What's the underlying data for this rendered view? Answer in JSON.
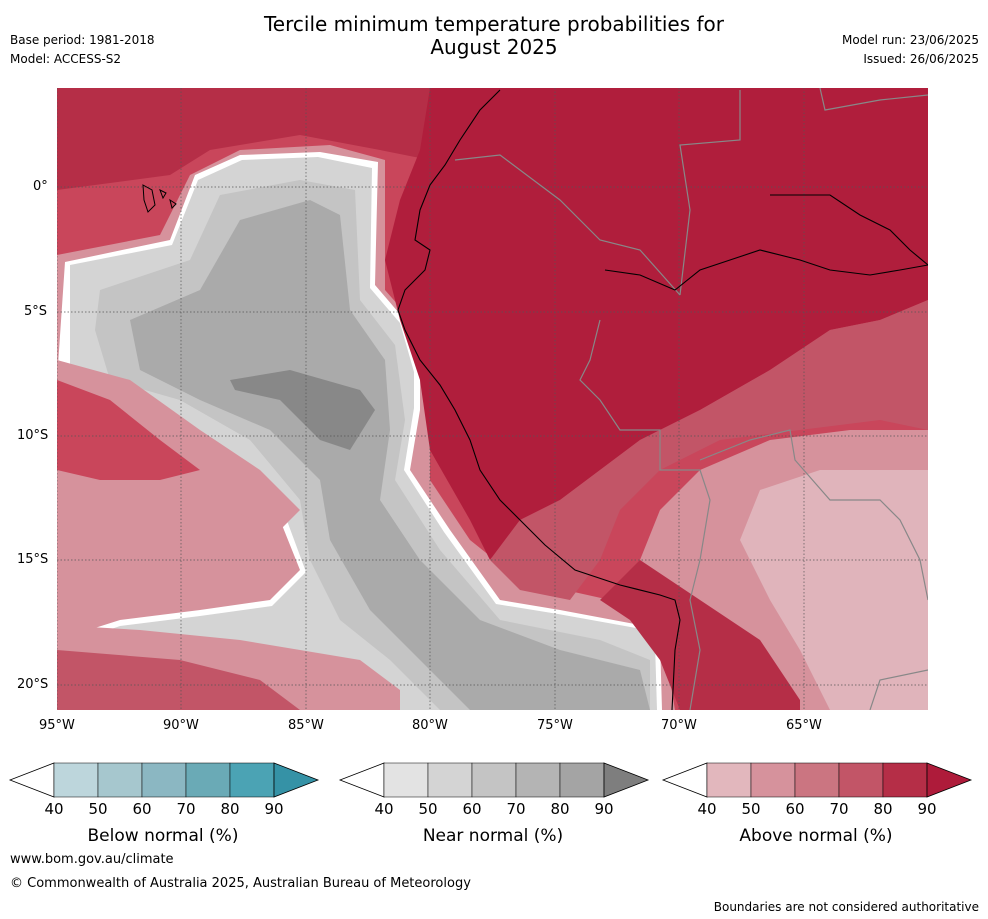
{
  "header": {
    "title_line1": "Tercile minimum temperature probabilities for",
    "title_line2": "August 2025",
    "base_period": "Base period: 1981-2018",
    "model": "Model: ACCESS-S2",
    "model_run": "Model run: 23/06/2025",
    "issued": "Issued: 26/06/2025"
  },
  "map": {
    "lat_labels": [
      "0°",
      "5°S",
      "10°S",
      "15°S",
      "20°S"
    ],
    "lon_labels": [
      "95°W",
      "90°W",
      "85°W",
      "80°W",
      "75°W",
      "70°W",
      "65°W"
    ],
    "colors": {
      "ocean_above": "#c9465b",
      "land_above": "#b01e3c",
      "near": "#aaaaaa",
      "light_near": "#d4d4d4",
      "light_above": "#e0b4bb"
    }
  },
  "colorbars": [
    {
      "label": "Below normal (%)",
      "ticks": [
        "40",
        "50",
        "60",
        "70",
        "80",
        "90"
      ],
      "colors": [
        "#ffffff",
        "#bdd6dc",
        "#a6c7ce",
        "#8bb7c2",
        "#6aaab6",
        "#4ba3b4",
        "#3592a6"
      ]
    },
    {
      "label": "Near normal (%)",
      "ticks": [
        "40",
        "50",
        "60",
        "70",
        "80",
        "90"
      ],
      "colors": [
        "#ffffff",
        "#e3e3e3",
        "#d4d4d4",
        "#c4c4c4",
        "#b4b4b4",
        "#a4a4a4",
        "#7e7e7e"
      ]
    },
    {
      "label": "Above normal (%)",
      "ticks": [
        "40",
        "50",
        "60",
        "70",
        "80",
        "90"
      ],
      "colors": [
        "#ffffff",
        "#e2b7bd",
        "#d6929c",
        "#cb7581",
        "#c25567",
        "#b52e47",
        "#ae1b3a"
      ]
    }
  ],
  "footer": {
    "url": "www.bom.gov.au/climate",
    "copyright": "© Commonwealth of Australia 2025, Australian Bureau of Meteorology",
    "disclaimer": "Boundaries are not considered authoritative"
  }
}
